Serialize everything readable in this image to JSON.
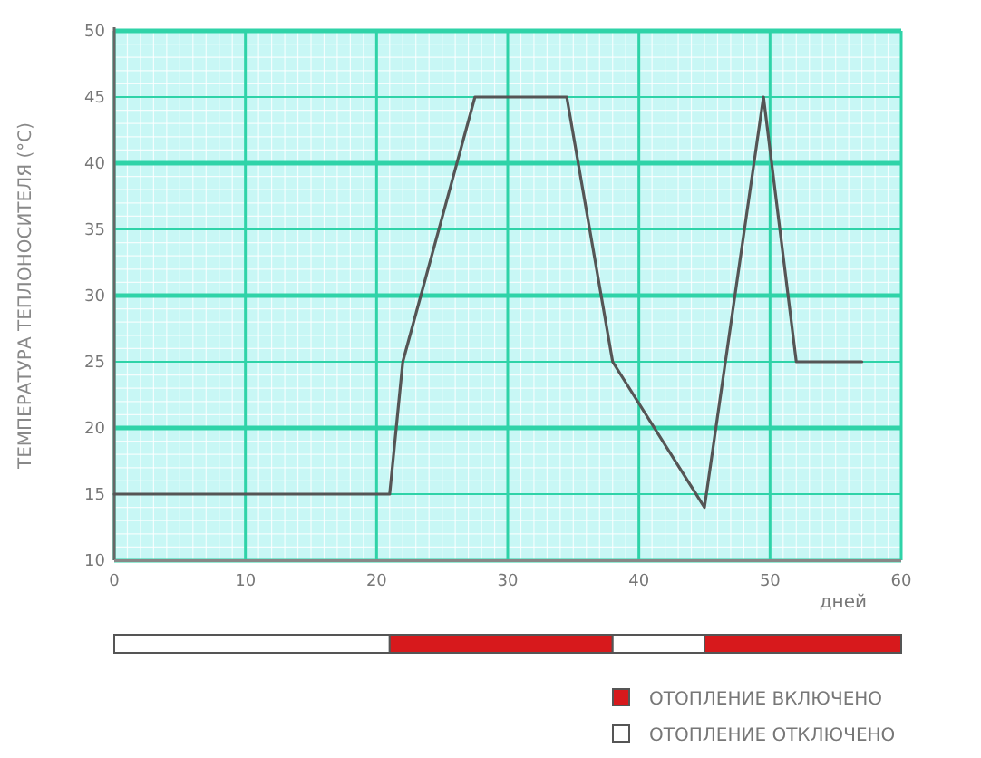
{
  "chart_data": [
    {
      "type": "line",
      "xlabel": "дней",
      "ylabel": "ТЕМПЕРАТУРА ТЕПЛОНОСИТЕЛЯ (°C)",
      "x": [
        0,
        21,
        22,
        27.5,
        34.5,
        38,
        45,
        49.5,
        52,
        57
      ],
      "series": [
        {
          "color": "#555555",
          "values": [
            15,
            15,
            25,
            45,
            45,
            25,
            14,
            45,
            25,
            25
          ]
        }
      ],
      "xlim": [
        0,
        60
      ],
      "ylim": [
        10,
        50
      ],
      "xticks": [
        0,
        10,
        20,
        30,
        40,
        50,
        60
      ],
      "yticks": [
        10,
        15,
        20,
        25,
        30,
        35,
        40,
        45,
        50
      ],
      "grid": true,
      "marker": "none",
      "line_style": "solid"
    },
    {
      "type": "bar",
      "orientation": "horizontal",
      "stacked": true,
      "categories": [
        null
      ],
      "xlim": [
        0,
        60
      ],
      "legend": "bottom right",
      "series": [
        {
          "name": "ОТОПЛЕНИЕ ОТКЛЮЧЕНО",
          "color": "#ffffff",
          "values": [
            21
          ]
        },
        {
          "name": "ОТОПЛЕНИЕ ВКЛЮЧЕНО",
          "color": "#d7191c",
          "values": [
            17
          ]
        },
        {
          "color": "#ffffff",
          "values": [
            7
          ]
        },
        {
          "color": "#d7191c",
          "values": [
            15
          ]
        }
      ]
    }
  ]
}
